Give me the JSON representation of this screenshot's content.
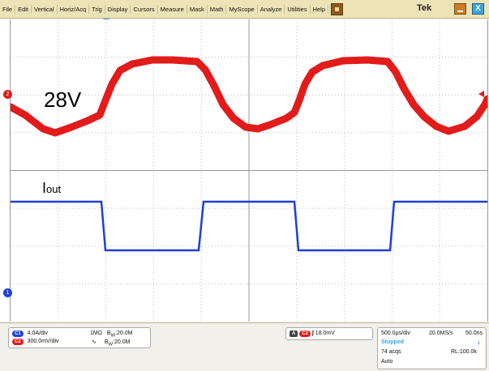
{
  "menu": {
    "items": [
      "File",
      "Edit",
      "Vertical",
      "Horiz/Acq",
      "Trig",
      "Display",
      "Cursors",
      "Measure",
      "Mask",
      "Math",
      "MyScope",
      "Analyze",
      "Utilities",
      "Help"
    ]
  },
  "brand": "Tek",
  "close_glyph": "X",
  "annotations": {
    "voltage_label": "28V",
    "current_label_main": "I",
    "current_label_sub": "out"
  },
  "markers": {
    "ch2": "2",
    "ch1": "1"
  },
  "channels": {
    "ch1": {
      "chip": "C1",
      "scale": "4.0A/div",
      "coupling": "1MΩ",
      "bw": "B",
      "bw_sub": "W",
      "bw_value": ":20.0M",
      "color": "#1f3fd6"
    },
    "ch2": {
      "chip": "C2",
      "scale": "300.0mV/div",
      "coupling": "∿",
      "bw": "B",
      "bw_sub": "W",
      "bw_value": ":20.0M",
      "color": "#e21b1b"
    }
  },
  "trigger": {
    "mode_chip": "A",
    "source_chip": "C2",
    "slope": "∫",
    "level": "18.0mV"
  },
  "horizontal": {
    "scale": "500.0µs/div",
    "sample_rate": "20.0MS/s",
    "resolution": "50.0ns",
    "state": "Stopped",
    "acqs": "74 acqs",
    "record_length": "RL:100.0k",
    "mode": "Auto"
  },
  "colors": {
    "ch1": "#1f3fd6",
    "ch2": "#e21b1b",
    "menubar": "#ece3b7",
    "accent": "#3aa5d8"
  }
}
